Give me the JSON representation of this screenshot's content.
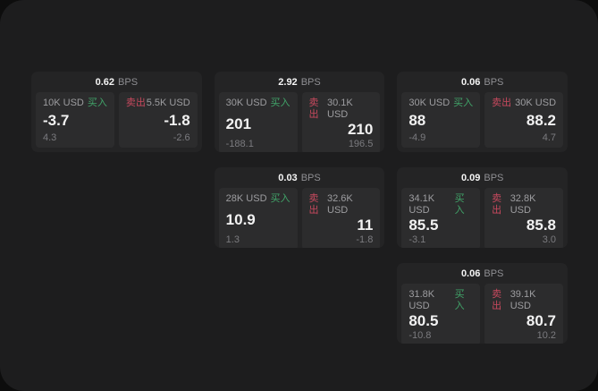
{
  "labels": {
    "bps_unit": "BPS",
    "buy": "买入",
    "sell": "卖出"
  },
  "colors": {
    "background": "#0d0d0d",
    "panel": "#1d1d1e",
    "card": "#242425",
    "subpanel": "#2c2c2d",
    "buy_green": "#41a469",
    "sell_red": "#c8495e",
    "value_white": "#f2f2f2",
    "label_gray": "#9d9da0",
    "delta_gray": "#7b7b7f"
  },
  "cards": [
    {
      "row": 1,
      "col": 1,
      "bps": "0.62",
      "buy": {
        "amount": "10K USD",
        "price": "-3.7",
        "delta": "4.3"
      },
      "sell": {
        "amount": "5.5K USD",
        "price": "-1.8",
        "delta": "-2.6"
      }
    },
    {
      "row": 1,
      "col": 2,
      "bps": "2.92",
      "buy": {
        "amount": "30K USD",
        "price": "201",
        "delta": "-188.1"
      },
      "sell": {
        "amount": "30.1K USD",
        "price": "210",
        "delta": "196.5"
      }
    },
    {
      "row": 1,
      "col": 3,
      "bps": "0.06",
      "buy": {
        "amount": "30K USD",
        "price": "88",
        "delta": "-4.9"
      },
      "sell": {
        "amount": "30K USD",
        "price": "88.2",
        "delta": "4.7"
      }
    },
    {
      "row": 2,
      "col": 2,
      "bps": "0.03",
      "buy": {
        "amount": "28K USD",
        "price": "10.9",
        "delta": "1.3"
      },
      "sell": {
        "amount": "32.6K USD",
        "price": "11",
        "delta": "-1.8"
      }
    },
    {
      "row": 2,
      "col": 3,
      "bps": "0.09",
      "buy": {
        "amount": "34.1K USD",
        "price": "85.5",
        "delta": "-3.1"
      },
      "sell": {
        "amount": "32.8K USD",
        "price": "85.8",
        "delta": "3.0"
      }
    },
    {
      "row": 3,
      "col": 3,
      "bps": "0.06",
      "buy": {
        "amount": "31.8K USD",
        "price": "80.5",
        "delta": "-10.8"
      },
      "sell": {
        "amount": "39.1K USD",
        "price": "80.7",
        "delta": "10.2"
      }
    }
  ]
}
